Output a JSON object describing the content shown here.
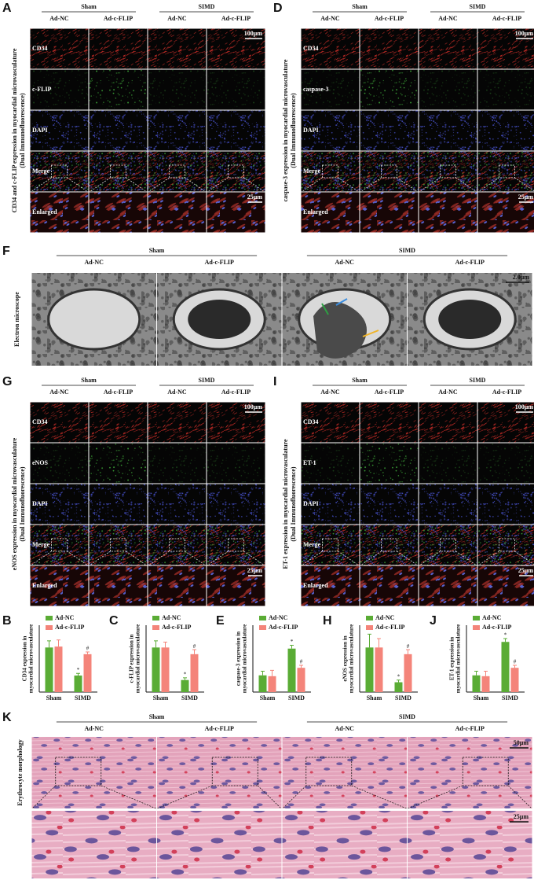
{
  "figure": {
    "fluorescence_panels": [
      {
        "letter": "A",
        "side_label": [
          "CD34 and c-FLIP expression in myocardial microvasculature",
          "(Dual Immunofluorescence)"
        ],
        "groups": [
          "Sham",
          "SIMD"
        ],
        "columns": [
          "Ad-NC",
          "Ad-c-FLIP",
          "Ad-NC",
          "Ad-c-FLIP"
        ],
        "rows": [
          "CD34",
          "c-FLIP",
          "DAPI",
          "Merge",
          "Enlarged"
        ],
        "scale_bars": [
          "100μm",
          "25μm"
        ]
      },
      {
        "letter": "D",
        "side_label": [
          "caspase-3 expression in myocardial microvasculature",
          "(Dual Immunofluorescence)"
        ],
        "groups": [
          "Sham",
          "SIMD"
        ],
        "columns": [
          "Ad-NC",
          "Ad-c-FLIP",
          "Ad-NC",
          "Ad-c-FLIP"
        ],
        "rows": [
          "CD34",
          "caspase-3",
          "DAPI",
          "Merge",
          "Enlarged"
        ],
        "scale_bars": [
          "100μm",
          "25μm"
        ]
      },
      {
        "letter": "G",
        "side_label": [
          "eNOS expression in myocardial microvasculature",
          "(Dual Immunofluorescence)"
        ],
        "groups": [
          "Sham",
          "SIMD"
        ],
        "columns": [
          "Ad-NC",
          "Ad-c-FLIP",
          "Ad-NC",
          "Ad-c-FLIP"
        ],
        "rows": [
          "CD34",
          "eNOS",
          "DAPI",
          "Merge",
          "Enlarged"
        ],
        "scale_bars": [
          "100μm",
          "25μm"
        ]
      },
      {
        "letter": "I",
        "side_label": [
          "ET-1 expression in myocardial microvasculature",
          "(Dual Immunofluorescence)"
        ],
        "groups": [
          "Sham",
          "SIMD"
        ],
        "columns": [
          "Ad-NC",
          "Ad-c-FLIP",
          "Ad-NC",
          "Ad-c-FLIP"
        ],
        "rows": [
          "CD34",
          "ET-1",
          "DAPI",
          "Merge",
          "Enlarged"
        ],
        "scale_bars": [
          "100μm",
          "25μm"
        ]
      }
    ],
    "electron_panel": {
      "letter": "F",
      "side_label": "Electron microscope",
      "groups": [
        "Sham",
        "SIMD"
      ],
      "columns": [
        "Ad-NC",
        "Ad-c-FLIP",
        "Ad-NC",
        "Ad-c-FLIP"
      ],
      "scale_bar": "2.0μm"
    },
    "he_panel": {
      "letter": "K",
      "side_label": "Erythrocyte morphology",
      "groups": [
        "Sham",
        "SIMD"
      ],
      "columns": [
        "Ad-NC",
        "Ad-c-FLIP",
        "Ad-NC",
        "Ad-c-FLIP"
      ],
      "scale_bars": [
        "50μm",
        "25μm"
      ]
    }
  },
  "chart_data": [
    {
      "type": "bar",
      "letter": "B",
      "y_label": [
        "CD34 expression in",
        "myocardial microvasculature"
      ],
      "categories": [
        "Sham",
        "SIMD"
      ],
      "ylim": [
        0,
        1.5
      ],
      "series": [
        {
          "name": "Ad-NC",
          "color": "#5aac35",
          "values": [
            1.0,
            0.37
          ],
          "errors": [
            0.15,
            0.05
          ],
          "significance": [
            null,
            "*"
          ]
        },
        {
          "name": "Ad-c-FLIP",
          "color": "#f4847a",
          "values": [
            1.02,
            0.85
          ],
          "errors": [
            0.15,
            0.05
          ],
          "significance": [
            null,
            "#"
          ]
        }
      ]
    },
    {
      "type": "bar",
      "letter": "C",
      "y_label": [
        "c-FLIP expression in",
        "myocardial microvasculature"
      ],
      "categories": [
        "Sham",
        "SIMD"
      ],
      "ylim": [
        0,
        1.5
      ],
      "series": [
        {
          "name": "Ad-NC",
          "color": "#5aac35",
          "values": [
            1.0,
            0.27
          ],
          "errors": [
            0.15,
            0.05
          ],
          "significance": [
            null,
            "*"
          ]
        },
        {
          "name": "Ad-c-FLIP",
          "color": "#f4847a",
          "values": [
            1.0,
            0.85
          ],
          "errors": [
            0.12,
            0.1
          ],
          "significance": [
            null,
            "#"
          ]
        }
      ]
    },
    {
      "type": "bar",
      "letter": "E",
      "y_label": [
        "caspase-3 expression in",
        "myocardial microvasculature"
      ],
      "categories": [
        "Sham",
        "SIMD"
      ],
      "ylim": [
        0,
        4
      ],
      "series": [
        {
          "name": "Ad-NC",
          "color": "#5aac35",
          "values": [
            1.0,
            2.6
          ],
          "errors": [
            0.25,
            0.2
          ],
          "significance": [
            null,
            "*"
          ]
        },
        {
          "name": "Ad-c-FLIP",
          "color": "#f4847a",
          "values": [
            0.95,
            1.45
          ],
          "errors": [
            0.35,
            0.15
          ],
          "significance": [
            null,
            "#"
          ]
        }
      ]
    },
    {
      "type": "bar",
      "letter": "H",
      "y_label": [
        "eNOS expression in",
        "myocardial microvasculature"
      ],
      "categories": [
        "Sham",
        "SIMD"
      ],
      "ylim": [
        0,
        1.5
      ],
      "series": [
        {
          "name": "Ad-NC",
          "color": "#5aac35",
          "values": [
            1.0,
            0.22
          ],
          "errors": [
            0.3,
            0.05
          ],
          "significance": [
            null,
            "*"
          ]
        },
        {
          "name": "Ad-c-FLIP",
          "color": "#f4847a",
          "values": [
            1.0,
            0.85
          ],
          "errors": [
            0.2,
            0.1
          ],
          "significance": [
            null,
            "#"
          ]
        }
      ]
    },
    {
      "type": "bar",
      "letter": "J",
      "y_label": [
        "ET-1 expression in",
        "myocardial microvasculature"
      ],
      "categories": [
        "Sham",
        "SIMD"
      ],
      "ylim": [
        0,
        4
      ],
      "series": [
        {
          "name": "Ad-NC",
          "color": "#5aac35",
          "values": [
            1.0,
            3.0
          ],
          "errors": [
            0.25,
            0.2
          ],
          "significance": [
            null,
            "*"
          ]
        },
        {
          "name": "Ad-c-FLIP",
          "color": "#f4847a",
          "values": [
            0.95,
            1.45
          ],
          "errors": [
            0.3,
            0.15
          ],
          "significance": [
            null,
            "#"
          ]
        }
      ]
    }
  ]
}
